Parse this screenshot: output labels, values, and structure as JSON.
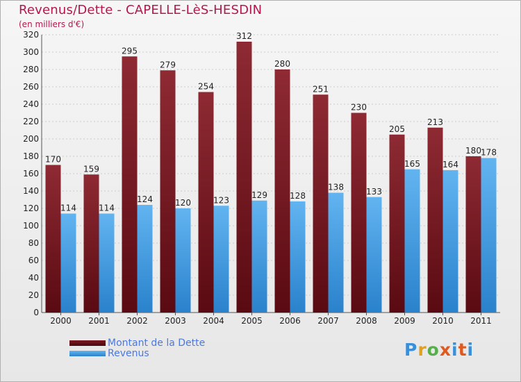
{
  "chart_data": {
    "type": "bar",
    "title": "Revenus/Dette - CAPELLE-LèS-HESDIN",
    "subtitle": "(en milliers d'€)",
    "categories": [
      "2000",
      "2001",
      "2002",
      "2003",
      "2004",
      "2005",
      "2006",
      "2007",
      "2008",
      "2009",
      "2010",
      "2011"
    ],
    "series": [
      {
        "name": "Montant de la Dette",
        "color": "#7a1820",
        "values": [
          170,
          159,
          295,
          279,
          254,
          312,
          280,
          251,
          230,
          205,
          213,
          180
        ]
      },
      {
        "name": "Revenus",
        "color": "#4aa3e6",
        "values": [
          114,
          114,
          124,
          120,
          123,
          129,
          128,
          138,
          133,
          165,
          164,
          178
        ]
      }
    ],
    "ylim": [
      0,
      320
    ],
    "yticks": [
      0,
      20,
      40,
      60,
      80,
      100,
      120,
      140,
      160,
      180,
      200,
      220,
      240,
      260,
      280,
      300,
      320
    ],
    "grid": true,
    "legend_position": "bottom-left"
  },
  "logo": {
    "text": "Proxiti"
  }
}
